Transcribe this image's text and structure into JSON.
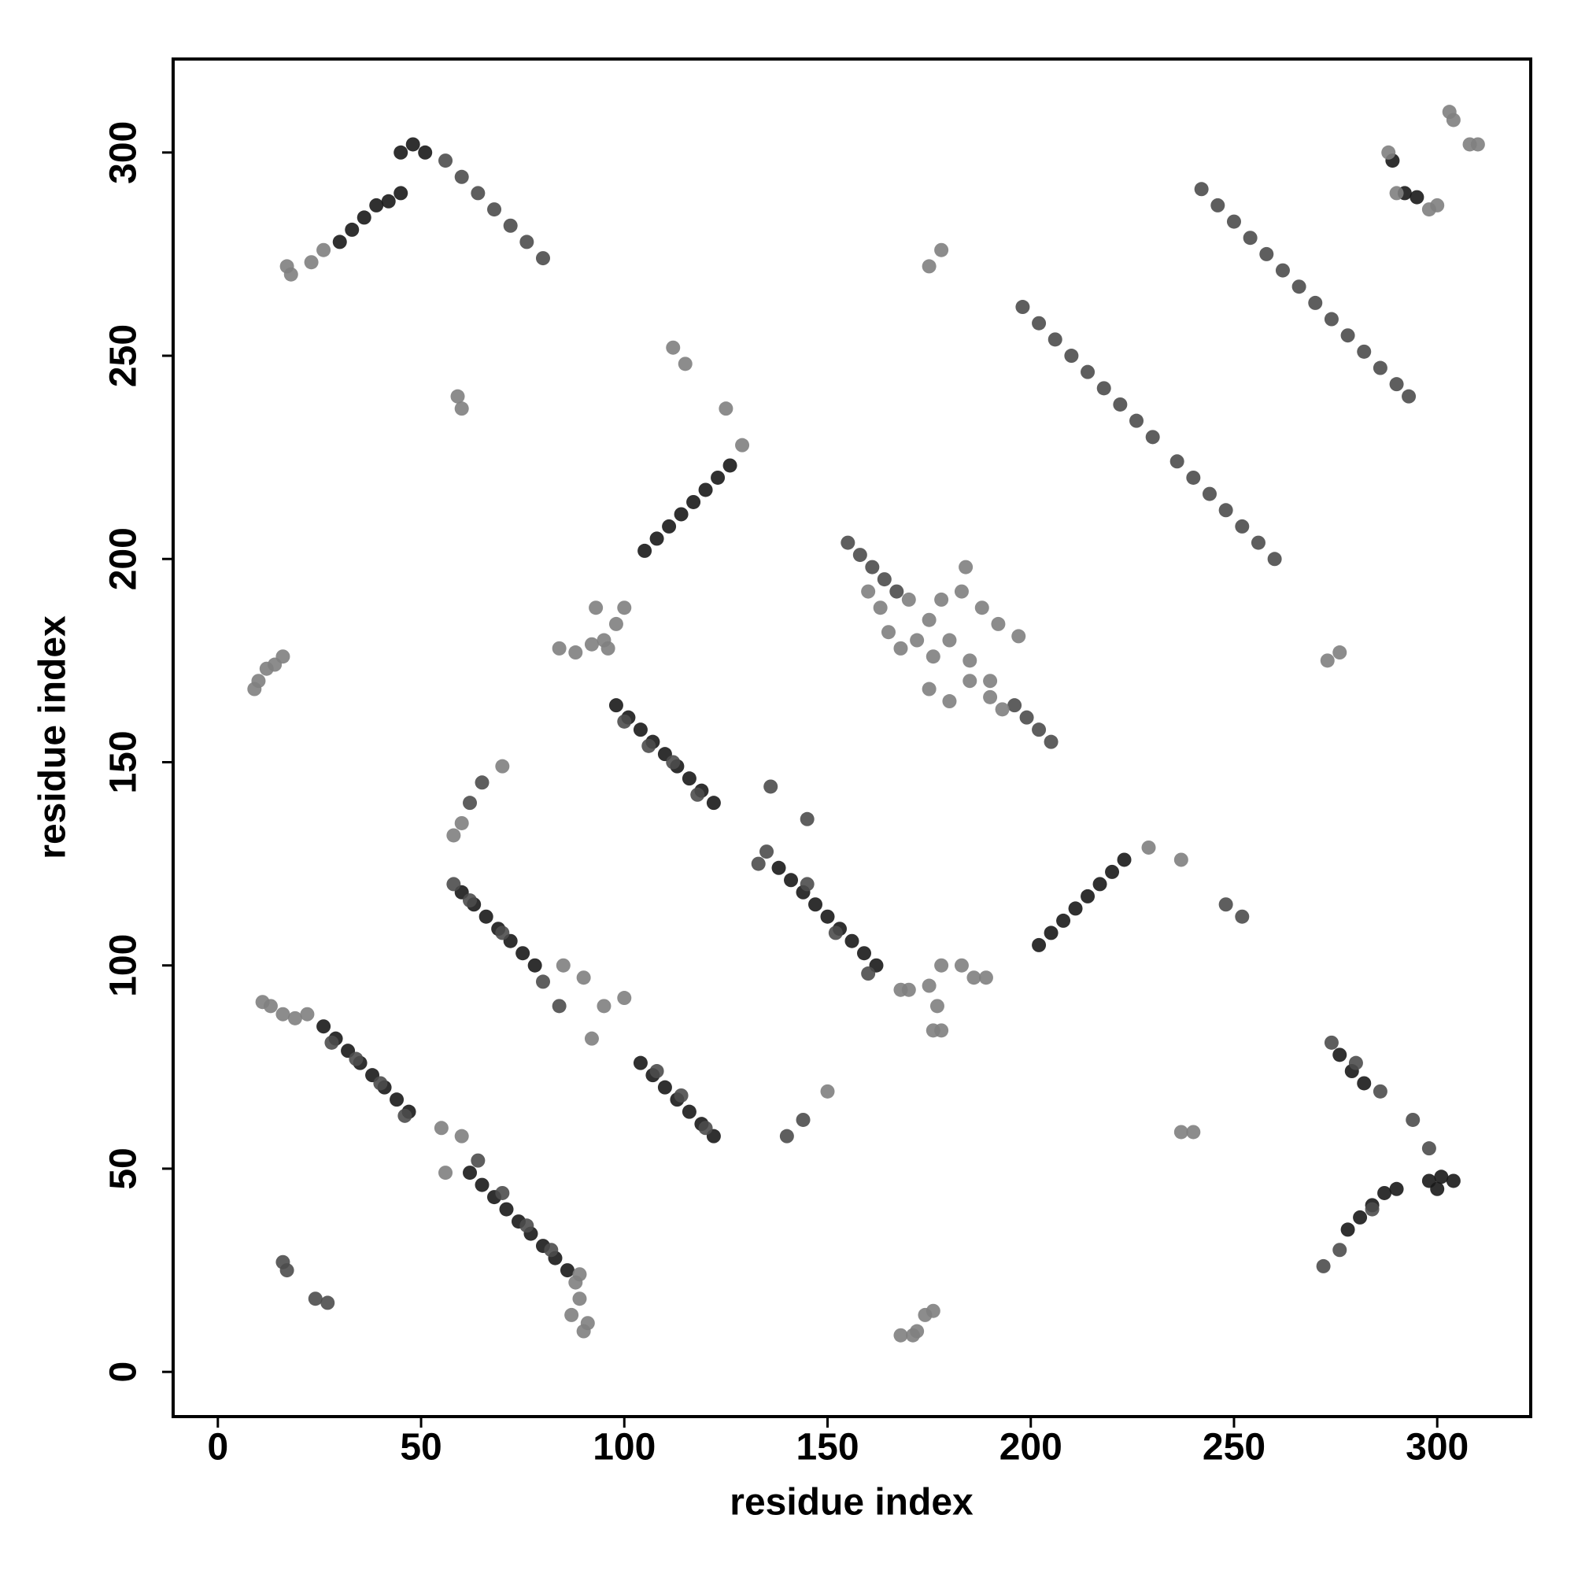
{
  "chart_data": {
    "type": "scatter",
    "xlabel": "residue index",
    "ylabel": "residue index",
    "xlim": [
      -11,
      323
    ],
    "ylim": [
      -11,
      323
    ],
    "xticks": [
      0,
      50,
      100,
      150,
      200,
      250,
      300
    ],
    "yticks": [
      0,
      50,
      100,
      150,
      200,
      250,
      300
    ],
    "grid": false,
    "series": [
      {
        "color": "#1a1a1a",
        "x": [
          26,
          29,
          32,
          35,
          38,
          41,
          44,
          47,
          62,
          65,
          68,
          71,
          74,
          77,
          80,
          83,
          86,
          60,
          63,
          66,
          69,
          72,
          75,
          78,
          104,
          107,
          110,
          113,
          116,
          119,
          122,
          98,
          101,
          104,
          107,
          110,
          113,
          116,
          119,
          122,
          138,
          141,
          144,
          147,
          150,
          153,
          156,
          159,
          162,
          105,
          108,
          111,
          114,
          117,
          120,
          123,
          126,
          202,
          205,
          208,
          211,
          214,
          217,
          220,
          223,
          30,
          33,
          36,
          39,
          42,
          45,
          45,
          48,
          51,
          289,
          292,
          295,
          298,
          301,
          304,
          300,
          278,
          281,
          284,
          287,
          290,
          276,
          279,
          282
        ],
        "values": [
          85,
          82,
          79,
          76,
          73,
          70,
          67,
          64,
          49,
          46,
          43,
          40,
          37,
          34,
          31,
          28,
          25,
          118,
          115,
          112,
          109,
          106,
          103,
          100,
          76,
          73,
          70,
          67,
          64,
          61,
          58,
          164,
          161,
          158,
          155,
          152,
          149,
          146,
          143,
          140,
          124,
          121,
          118,
          115,
          112,
          109,
          106,
          103,
          100,
          202,
          205,
          208,
          211,
          214,
          217,
          220,
          223,
          105,
          108,
          111,
          114,
          117,
          120,
          123,
          126,
          278,
          281,
          284,
          287,
          288,
          290,
          300,
          302,
          300,
          298,
          290,
          289,
          47,
          48,
          47,
          45,
          35,
          38,
          41,
          44,
          45,
          78,
          74,
          71
        ]
      },
      {
        "color": "#4d4d4d",
        "x": [
          198,
          202,
          206,
          210,
          214,
          218,
          222,
          226,
          230,
          236,
          240,
          244,
          248,
          252,
          256,
          260,
          242,
          246,
          250,
          254,
          258,
          262,
          266,
          270,
          274,
          278,
          282,
          286,
          290,
          293,
          56,
          60,
          64,
          68,
          72,
          76,
          80,
          155,
          158,
          161,
          164,
          167,
          196,
          199,
          202,
          205,
          28,
          34,
          40,
          46,
          64,
          70,
          76,
          82,
          58,
          62,
          70,
          80,
          84,
          108,
          114,
          120,
          100,
          106,
          112,
          118,
          135,
          145,
          152,
          160,
          274,
          280,
          286,
          294,
          298,
          272,
          276,
          284,
          136,
          145,
          248,
          252,
          133,
          140,
          144,
          62,
          65,
          24,
          27,
          17,
          16
        ],
        "values": [
          262,
          258,
          254,
          250,
          246,
          242,
          238,
          234,
          230,
          224,
          220,
          216,
          212,
          208,
          204,
          200,
          291,
          287,
          283,
          279,
          275,
          271,
          267,
          263,
          259,
          255,
          251,
          247,
          243,
          240,
          298,
          294,
          290,
          286,
          282,
          278,
          274,
          204,
          201,
          198,
          195,
          192,
          164,
          161,
          158,
          155,
          81,
          77,
          71,
          63,
          52,
          44,
          36,
          30,
          120,
          116,
          108,
          96,
          90,
          74,
          68,
          60,
          160,
          154,
          150,
          142,
          128,
          120,
          108,
          98,
          81,
          76,
          69,
          62,
          55,
          26,
          30,
          40,
          144,
          136,
          115,
          112,
          125,
          58,
          62,
          140,
          145,
          18,
          17,
          25,
          27
        ]
      },
      {
        "color": "#808080",
        "x": [
          17,
          18,
          23,
          26,
          170,
          175,
          180,
          185,
          190,
          172,
          176,
          165,
          168,
          178,
          183,
          188,
          192,
          197,
          175,
          180,
          185,
          190,
          193,
          160,
          163,
          184,
          10,
          12,
          14,
          16,
          9,
          84,
          88,
          92,
          95,
          98,
          100,
          93,
          96,
          11,
          13,
          16,
          19,
          22,
          88,
          89,
          91,
          90,
          87,
          89,
          172,
          174,
          176,
          171,
          168,
          175,
          178,
          183,
          186,
          189,
          176,
          178,
          177,
          112,
          115,
          59,
          60,
          125,
          129,
          175,
          178,
          273,
          276,
          237,
          240,
          237,
          229,
          303,
          304,
          310,
          308,
          288,
          290,
          300,
          298,
          70,
          60,
          58,
          150,
          56,
          92,
          95,
          100,
          85,
          90,
          170,
          168,
          55,
          60
        ],
        "values": [
          272,
          270,
          273,
          276,
          190,
          185,
          180,
          175,
          170,
          180,
          176,
          182,
          178,
          190,
          192,
          188,
          184,
          181,
          168,
          165,
          170,
          166,
          163,
          192,
          188,
          198,
          170,
          173,
          174,
          176,
          168,
          178,
          177,
          179,
          180,
          184,
          188,
          188,
          178,
          91,
          90,
          88,
          87,
          88,
          22,
          18,
          12,
          10,
          14,
          24,
          10,
          14,
          15,
          9,
          9,
          95,
          100,
          100,
          97,
          97,
          84,
          84,
          90,
          252,
          248,
          240,
          237,
          237,
          228,
          272,
          276,
          175,
          177,
          59,
          59,
          126,
          129,
          310,
          308,
          302,
          302,
          300,
          290,
          287,
          286,
          149,
          135,
          132,
          69,
          49,
          82,
          90,
          92,
          100,
          97,
          94,
          94,
          60,
          58
        ]
      }
    ]
  }
}
